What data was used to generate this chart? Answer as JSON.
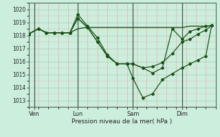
{
  "xlabel": "Pression niveau de la mer( hPa )",
  "bg_color": "#cceedd",
  "minor_grid_color": "#e8b0b0",
  "major_grid_color": "#b0c8b0",
  "line_color": "#1a5218",
  "vline_color": "#445544",
  "ylim": [
    1012.5,
    1020.5
  ],
  "yticks": [
    1013,
    1014,
    1015,
    1016,
    1017,
    1018,
    1019,
    1020
  ],
  "xlim": [
    0,
    9.5
  ],
  "xtick_positions": [
    0.3,
    2.5,
    5.3,
    7.8
  ],
  "xtick_labels": [
    "Ven",
    "Lun",
    "Sam",
    "Dim"
  ],
  "vline_positions": [
    0.3,
    2.5,
    5.3,
    7.8
  ],
  "lines": [
    {
      "x": [
        0.0,
        0.5,
        0.9,
        1.3,
        1.7,
        2.1,
        2.5,
        2.9,
        3.3,
        3.7,
        4.1,
        4.5,
        5.3,
        5.7,
        6.1,
        6.5,
        7.0,
        7.8,
        8.2,
        8.6,
        9.0,
        9.3
      ],
      "y": [
        1018.1,
        1018.5,
        1018.2,
        1018.2,
        1018.2,
        1018.2,
        1018.5,
        1018.6,
        1018.6,
        1018.6,
        1018.6,
        1018.6,
        1018.6,
        1018.6,
        1018.6,
        1018.6,
        1018.6,
        1018.6,
        1018.7,
        1018.7,
        1018.7,
        1018.75
      ],
      "marker": false,
      "lw": 1.0
    },
    {
      "x": [
        0.0,
        0.5,
        0.9,
        1.3,
        1.7,
        2.1,
        2.5,
        3.0,
        3.5,
        4.0,
        4.5,
        5.0,
        5.3,
        5.8,
        6.3,
        6.8,
        7.3,
        7.8,
        8.2,
        8.6,
        9.0,
        9.3
      ],
      "y": [
        1018.1,
        1018.5,
        1018.2,
        1018.2,
        1018.2,
        1018.2,
        1019.6,
        1018.7,
        1017.8,
        1016.5,
        1015.8,
        1015.8,
        1014.7,
        1013.2,
        1013.5,
        1014.6,
        1015.05,
        1015.5,
        1015.8,
        1016.1,
        1016.4,
        1018.75
      ],
      "marker": true,
      "lw": 0.9
    },
    {
      "x": [
        0.0,
        0.5,
        0.9,
        1.3,
        1.7,
        2.1,
        2.5,
        3.0,
        3.5,
        4.0,
        4.5,
        5.0,
        5.3,
        5.8,
        6.3,
        6.8,
        7.3,
        7.8,
        8.2,
        8.6,
        9.0,
        9.3
      ],
      "y": [
        1018.1,
        1018.5,
        1018.2,
        1018.2,
        1018.2,
        1018.2,
        1019.3,
        1018.6,
        1017.5,
        1016.4,
        1015.8,
        1015.8,
        1015.8,
        1015.5,
        1015.6,
        1015.9,
        1016.6,
        1017.5,
        1017.7,
        1018.1,
        1018.4,
        1018.75
      ],
      "marker": true,
      "lw": 0.9
    },
    {
      "x": [
        0.0,
        0.5,
        0.9,
        1.3,
        1.7,
        2.1,
        2.5,
        3.0,
        3.5,
        4.0,
        4.5,
        5.0,
        5.3,
        5.8,
        6.3,
        6.8,
        7.3,
        7.8,
        8.2,
        8.6,
        9.0,
        9.3
      ],
      "y": [
        1018.1,
        1018.5,
        1018.2,
        1018.2,
        1018.2,
        1018.2,
        1019.3,
        1018.6,
        1017.5,
        1016.4,
        1015.8,
        1015.8,
        1015.8,
        1015.5,
        1015.1,
        1015.5,
        1018.5,
        1017.7,
        1018.3,
        1018.5,
        1018.7,
        1018.75
      ],
      "marker": true,
      "lw": 0.9
    }
  ]
}
